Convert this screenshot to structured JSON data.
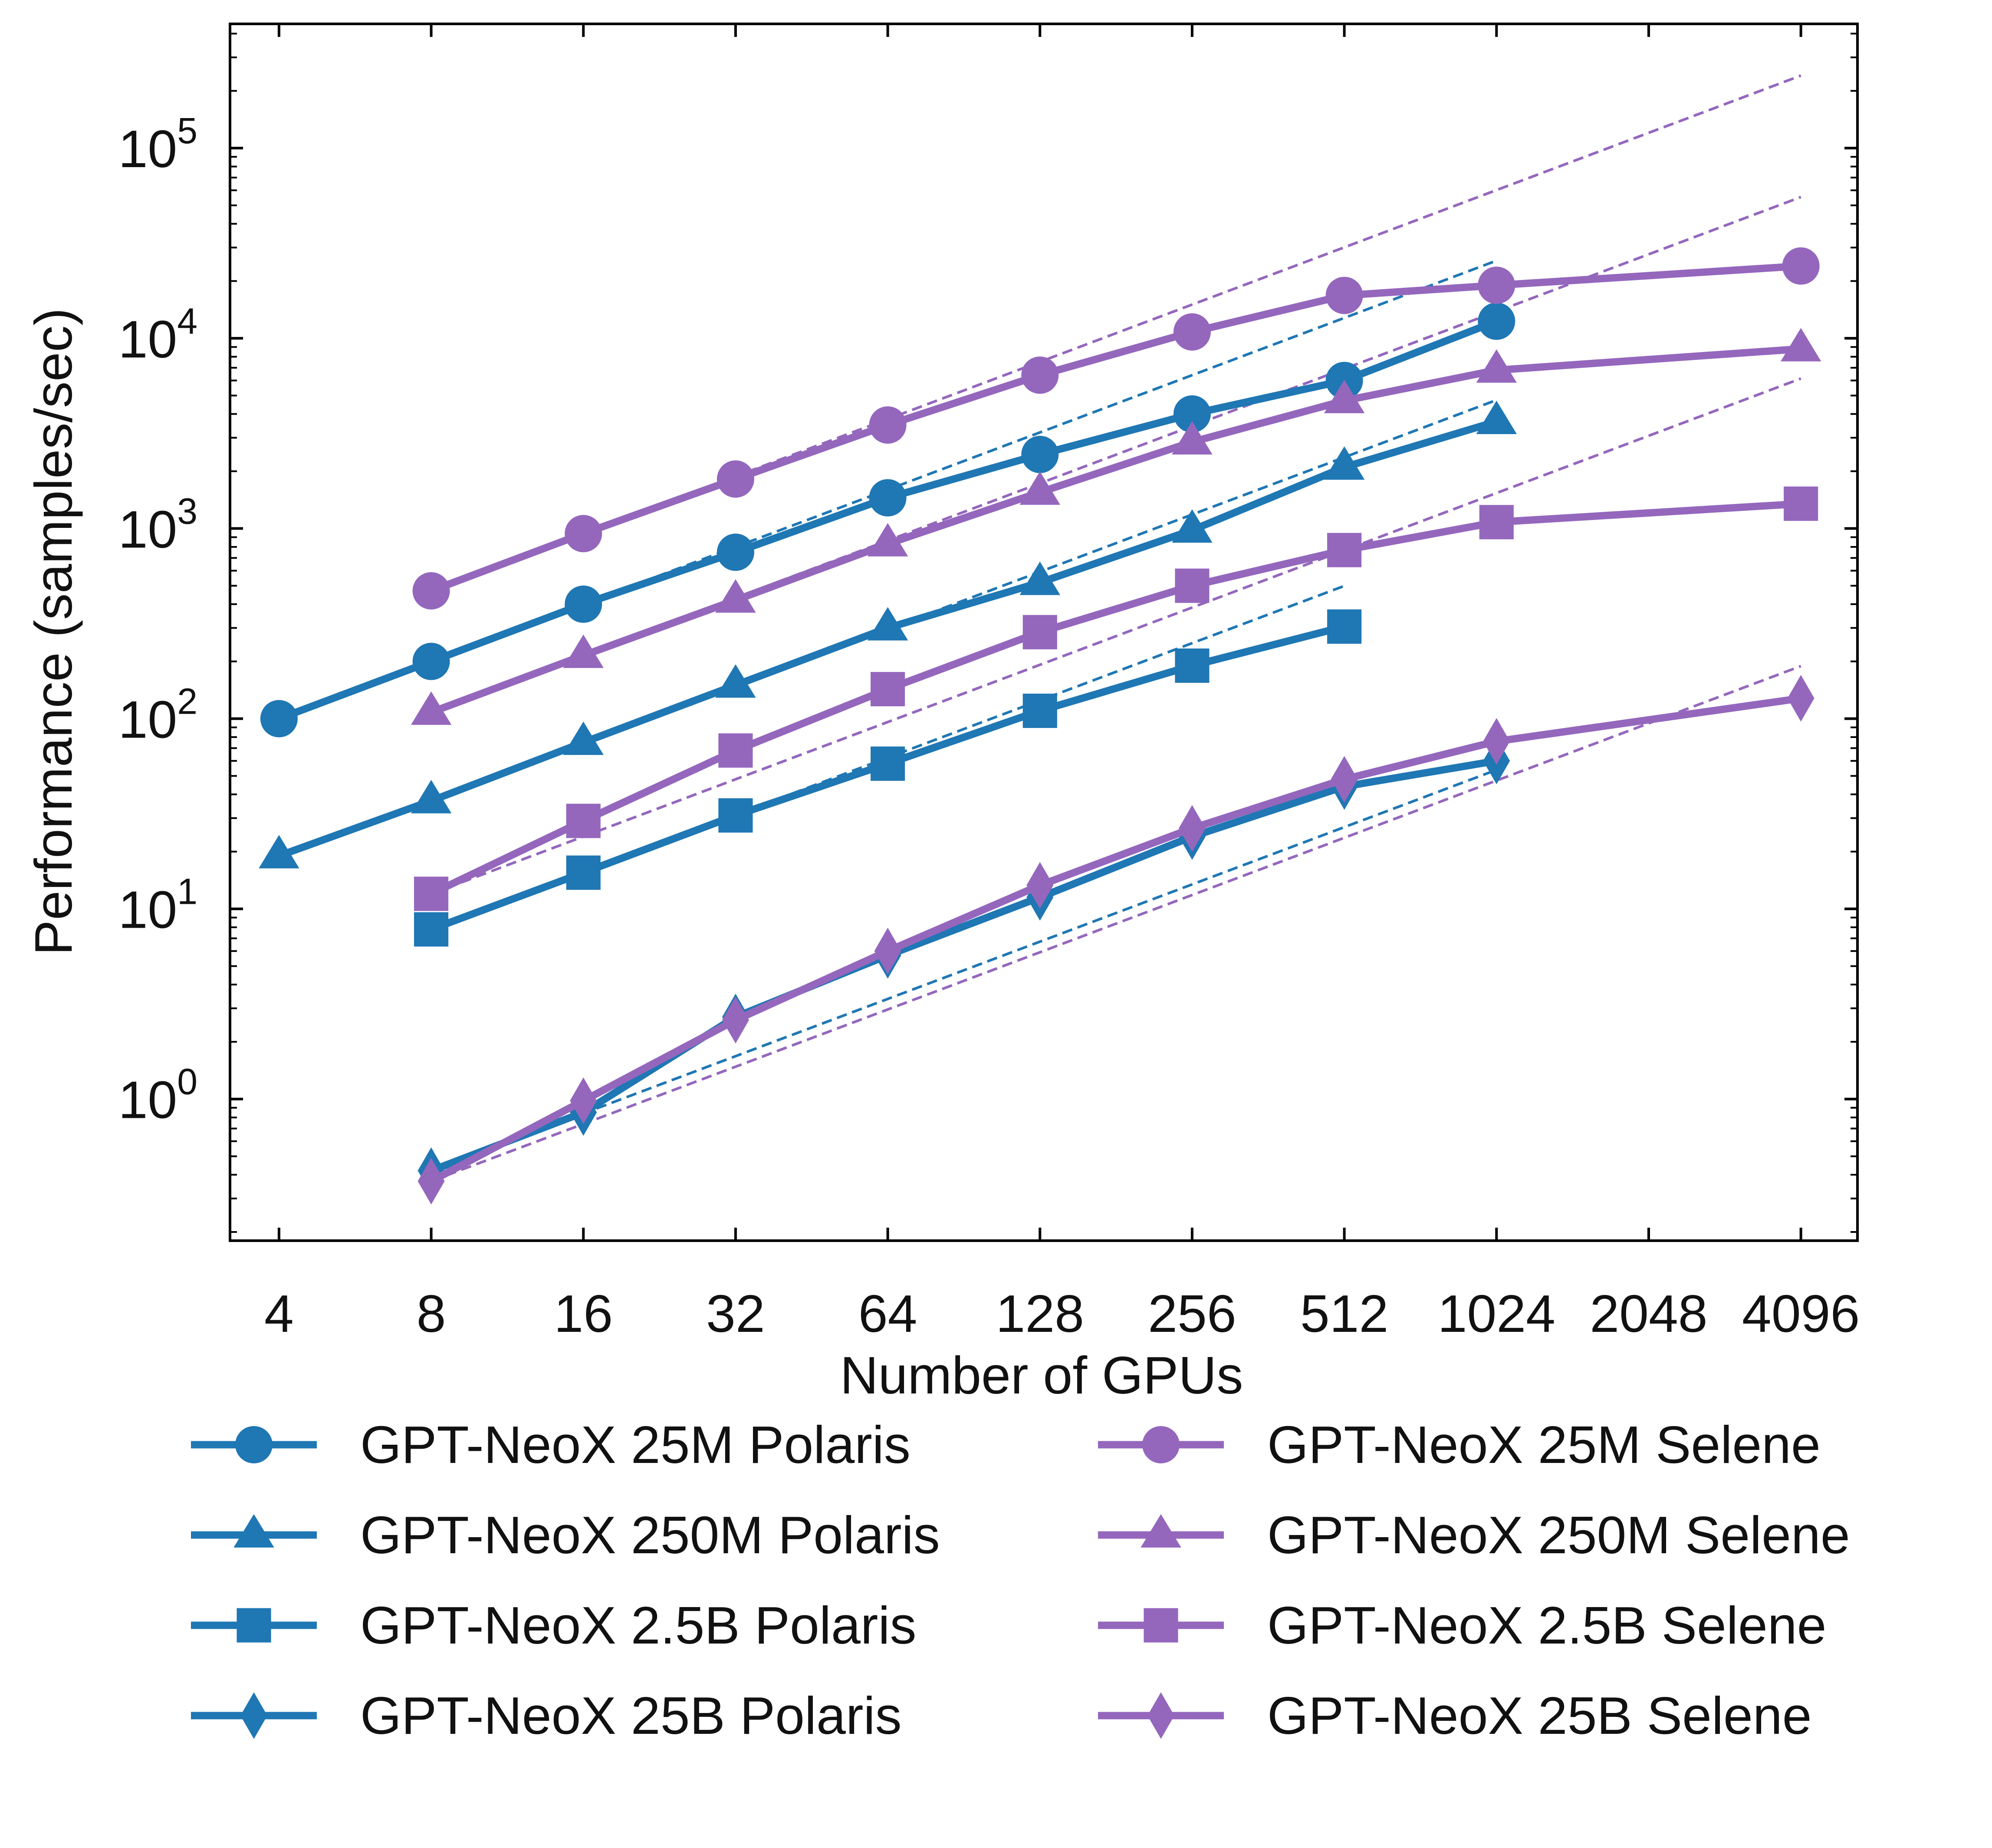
{
  "chart_data": {
    "type": "line",
    "title": "",
    "xlabel": "Number of GPUs",
    "ylabel": "Performance (samples/sec)",
    "x_scale": "log2",
    "y_scale": "log10",
    "xlim": [
      3.2,
      5300
    ],
    "ylim": [
      0.18,
      450000
    ],
    "x_ticks": [
      4,
      8,
      16,
      32,
      64,
      128,
      256,
      512,
      1024,
      2048,
      4096
    ],
    "x_tick_labels": [
      "4",
      "8",
      "16",
      "32",
      "64",
      "128",
      "256",
      "512",
      "1024",
      "2048",
      "4096"
    ],
    "y_ticks": [
      {
        "value": 1,
        "base": "10",
        "exp": "0"
      },
      {
        "value": 10,
        "base": "10",
        "exp": "1"
      },
      {
        "value": 100,
        "base": "10",
        "exp": "2"
      },
      {
        "value": 1000,
        "base": "10",
        "exp": "3"
      },
      {
        "value": 10000,
        "base": "10",
        "exp": "4"
      },
      {
        "value": 100000,
        "base": "10",
        "exp": "5"
      }
    ],
    "grid": false,
    "legend_position": "bottom",
    "colors": {
      "polaris": "#1f77b4",
      "selene": "#9467bd"
    },
    "series": [
      {
        "name": "GPT-NeoX 25M Polaris",
        "color": "#1f77b4",
        "marker": "circle",
        "x": [
          4,
          8,
          16,
          32,
          64,
          128,
          256,
          512,
          1024
        ],
        "y": [
          100,
          200,
          400,
          750,
          1450,
          2450,
          4000,
          6000,
          12300
        ]
      },
      {
        "name": "GPT-NeoX 250M Polaris",
        "color": "#1f77b4",
        "marker": "triangle",
        "x": [
          4,
          8,
          16,
          32,
          64,
          128,
          256,
          512,
          1024
        ],
        "y": [
          19,
          37,
          75,
          150,
          300,
          520,
          980,
          2100,
          3650
        ]
      },
      {
        "name": "GPT-NeoX 2.5B Polaris",
        "color": "#1f77b4",
        "marker": "square",
        "x": [
          8,
          16,
          32,
          64,
          128,
          256,
          512
        ],
        "y": [
          7.8,
          15.5,
          31,
          58,
          110,
          190,
          305
        ]
      },
      {
        "name": "GPT-NeoX 25B Polaris",
        "color": "#1f77b4",
        "marker": "diamond",
        "x": [
          8,
          16,
          32,
          64,
          128,
          256,
          512,
          1024
        ],
        "y": [
          0.42,
          0.85,
          2.7,
          5.7,
          11.5,
          24,
          44,
          60
        ]
      },
      {
        "name": "GPT-NeoX 25M Selene",
        "color": "#9467bd",
        "marker": "circle",
        "x": [
          8,
          16,
          32,
          64,
          128,
          256,
          512,
          1024,
          4096
        ],
        "y": [
          470,
          940,
          1820,
          3500,
          6400,
          10800,
          16800,
          19000,
          24000
        ]
      },
      {
        "name": "GPT-NeoX 250M Selene",
        "color": "#9467bd",
        "marker": "triangle",
        "x": [
          8,
          16,
          32,
          64,
          128,
          256,
          512,
          1024,
          4096
        ],
        "y": [
          108,
          215,
          420,
          830,
          1550,
          2850,
          4700,
          6800,
          8800
        ]
      },
      {
        "name": "GPT-NeoX 2.5B Selene",
        "color": "#9467bd",
        "marker": "square",
        "x": [
          8,
          16,
          32,
          64,
          128,
          256,
          512,
          1024,
          4096
        ],
        "y": [
          12,
          29,
          68,
          143,
          285,
          500,
          770,
          1080,
          1350
        ]
      },
      {
        "name": "GPT-NeoX 25B Selene",
        "color": "#9467bd",
        "marker": "diamond",
        "x": [
          8,
          16,
          32,
          64,
          128,
          256,
          512,
          1024,
          4096
        ],
        "y": [
          0.37,
          0.98,
          2.6,
          6.0,
          13.3,
          26.5,
          48,
          76,
          128
        ]
      }
    ],
    "ideal_scaling_lines": [
      {
        "color": "#1f77b4",
        "x": [
          8,
          1024
        ],
        "y": [
          200,
          25600
        ]
      },
      {
        "color": "#1f77b4",
        "x": [
          8,
          1024
        ],
        "y": [
          37,
          4736
        ]
      },
      {
        "color": "#1f77b4",
        "x": [
          8,
          512
        ],
        "y": [
          7.8,
          499
        ]
      },
      {
        "color": "#1f77b4",
        "x": [
          8,
          1024
        ],
        "y": [
          0.42,
          53.8
        ]
      },
      {
        "color": "#9467bd",
        "x": [
          8,
          4096
        ],
        "y": [
          470,
          240640
        ]
      },
      {
        "color": "#9467bd",
        "x": [
          8,
          4096
        ],
        "y": [
          108,
          55296
        ]
      },
      {
        "color": "#9467bd",
        "x": [
          8,
          4096
        ],
        "y": [
          12,
          6144
        ]
      },
      {
        "color": "#9467bd",
        "x": [
          8,
          4096
        ],
        "y": [
          0.37,
          189
        ]
      }
    ]
  }
}
